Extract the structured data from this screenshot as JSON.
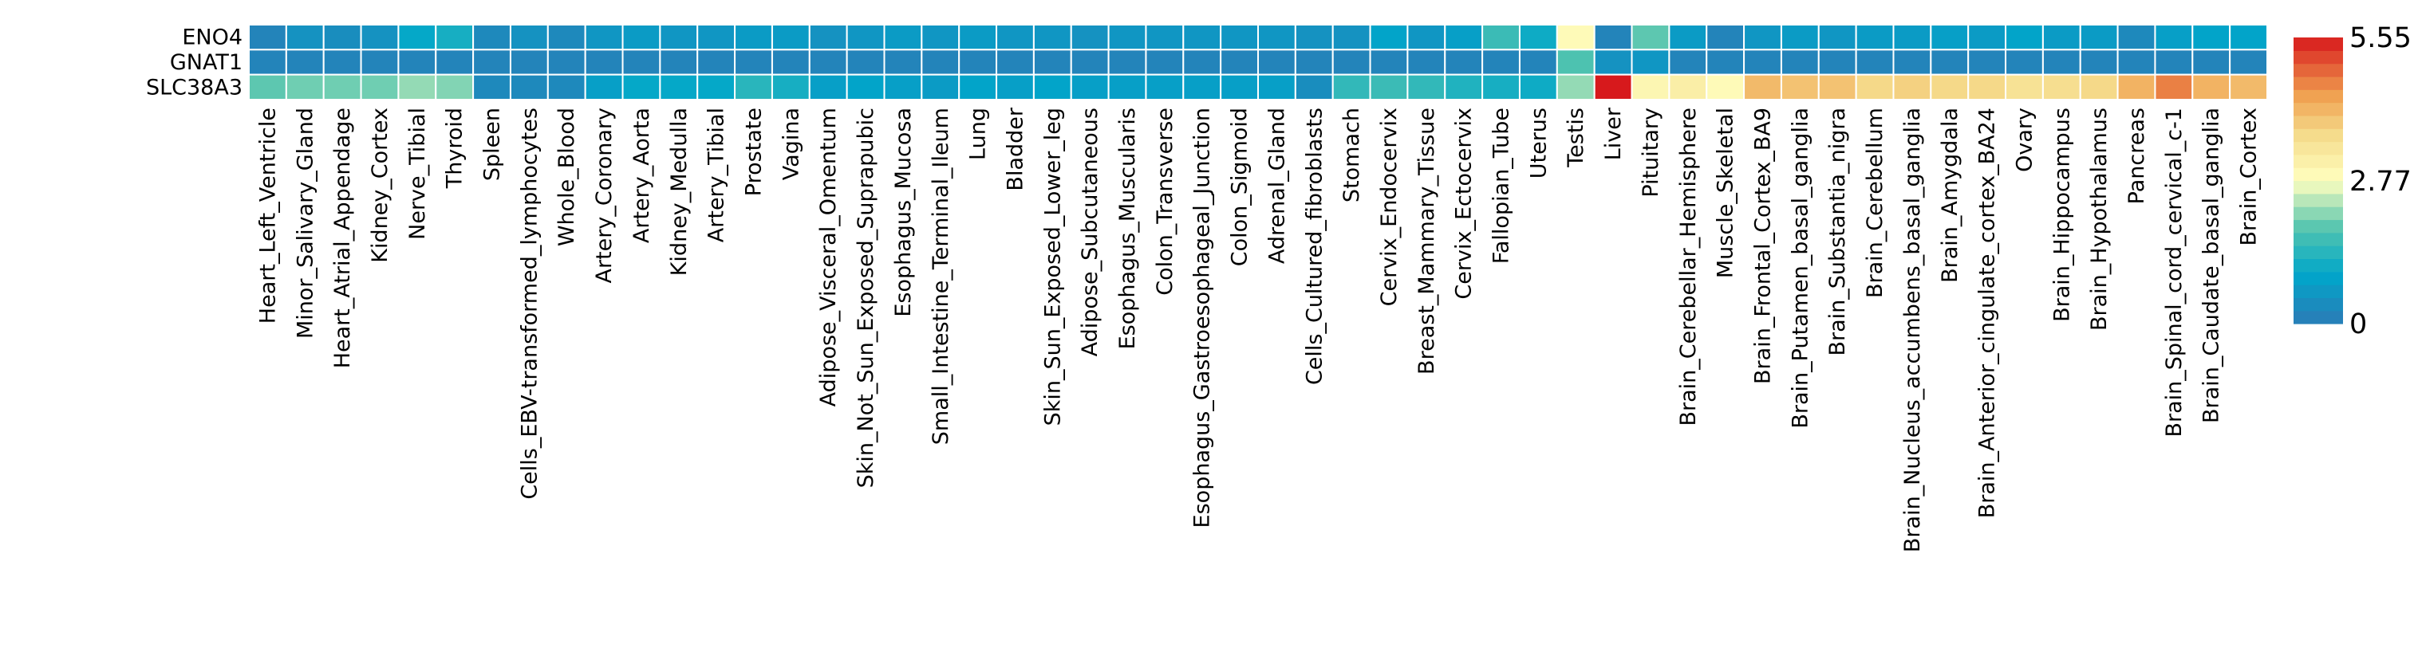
{
  "chart_data": {
    "type": "heatmap",
    "rows": [
      "ENO4",
      "GNAT1",
      "SLC38A3"
    ],
    "columns": [
      "Heart_Left_Ventricle",
      "Minor_Salivary_Gland",
      "Heart_Atrial_Appendage",
      "Kidney_Cortex",
      "Nerve_Tibial",
      "Thyroid",
      "Spleen",
      "Cells_EBV-transformed_lymphocytes",
      "Whole_Blood",
      "Artery_Coronary",
      "Artery_Aorta",
      "Kidney_Medulla",
      "Artery_Tibial",
      "Prostate",
      "Vagina",
      "Adipose_Visceral_Omentum",
      "Skin_Not_Sun_Exposed_Suprapubic",
      "Esophagus_Mucosa",
      "Small_Intestine_Terminal_Ileum",
      "Lung",
      "Bladder",
      "Skin_Sun_Exposed_Lower_leg",
      "Adipose_Subcutaneous",
      "Esophagus_Muscularis",
      "Colon_Transverse",
      "Esophagus_Gastroesophageal_Junction",
      "Colon_Sigmoid",
      "Adrenal_Gland",
      "Cells_Cultured_fibroblasts",
      "Stomach",
      "Cervix_Endocervix",
      "Breast_Mammary_Tissue",
      "Cervix_Ectocervix",
      "Fallopian_Tube",
      "Uterus",
      "Testis",
      "Liver",
      "Pituitary",
      "Brain_Cerebellar_Hemisphere",
      "Muscle_Skeletal",
      "Brain_Frontal_Cortex_BA9",
      "Brain_Putamen_basal_ganglia",
      "Brain_Substantia_nigra",
      "Brain_Cerebellum",
      "Brain_Nucleus_accumbens_basal_ganglia",
      "Brain_Amygdala",
      "Brain_Anterior_cingulate_cortex_BA24",
      "Ovary",
      "Brain_Hippocampus",
      "Brain_Hypothalamus",
      "Pancreas",
      "Brain_Spinal_cord_cervical_c-1",
      "Brain_Caudate_basal_ganglia",
      "Brain_Cortex"
    ],
    "values": [
      [
        0.2,
        0.5,
        0.4,
        0.5,
        1.0,
        1.2,
        0.3,
        0.5,
        0.3,
        0.6,
        0.7,
        0.6,
        0.6,
        0.7,
        0.7,
        0.5,
        0.6,
        0.7,
        0.6,
        0.7,
        0.6,
        0.6,
        0.5,
        0.6,
        0.6,
        0.6,
        0.6,
        0.6,
        0.5,
        0.5,
        0.9,
        0.6,
        0.8,
        1.6,
        1.1,
        2.9,
        0.2,
        1.9,
        0.7,
        0.2,
        0.6,
        0.7,
        0.6,
        0.7,
        0.7,
        0.8,
        0.7,
        0.9,
        0.7,
        0.7,
        0.3,
        0.8,
        0.9,
        0.9
      ],
      [
        0.2,
        0.2,
        0.2,
        0.2,
        0.2,
        0.2,
        0.2,
        0.2,
        0.2,
        0.2,
        0.2,
        0.2,
        0.2,
        0.2,
        0.2,
        0.2,
        0.2,
        0.2,
        0.2,
        0.2,
        0.2,
        0.2,
        0.2,
        0.2,
        0.2,
        0.2,
        0.2,
        0.2,
        0.2,
        0.2,
        0.2,
        0.2,
        0.2,
        0.2,
        0.2,
        1.8,
        0.5,
        0.6,
        0.2,
        0.2,
        0.2,
        0.2,
        0.2,
        0.2,
        0.2,
        0.2,
        0.2,
        0.2,
        0.2,
        0.2,
        0.2,
        0.2,
        0.2,
        0.2
      ],
      [
        1.9,
        2.0,
        2.0,
        2.0,
        2.2,
        2.1,
        0.3,
        0.3,
        0.3,
        0.8,
        1.0,
        1.0,
        1.0,
        1.4,
        1.2,
        0.8,
        0.9,
        0.8,
        0.7,
        0.9,
        0.8,
        0.9,
        0.8,
        0.8,
        0.8,
        0.8,
        0.8,
        0.8,
        0.4,
        1.5,
        1.6,
        1.5,
        1.3,
        1.2,
        1.1,
        2.2,
        5.55,
        3.0,
        3.2,
        2.9,
        4.1,
        4.0,
        4.0,
        3.7,
        3.8,
        3.7,
        3.7,
        3.5,
        3.6,
        3.7,
        4.2,
        4.7,
        4.2,
        4.1
      ]
    ],
    "colorbar": {
      "min": 0,
      "max": 5.55,
      "tick_labels": [
        "5.55",
        "2.77",
        "0"
      ],
      "tick_values": [
        5.55,
        2.77,
        0
      ]
    }
  }
}
